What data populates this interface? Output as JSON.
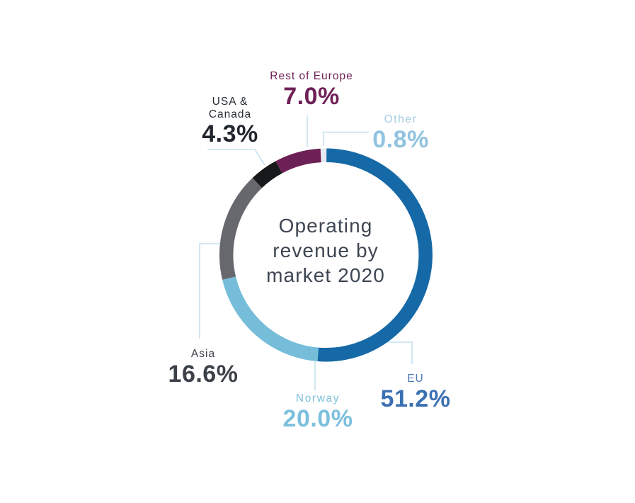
{
  "chart_data": {
    "type": "pie",
    "subtype": "donut",
    "title": "Operating revenue by market 2020",
    "legend_position": "callout-labels",
    "start_angle_deg": -2.6,
    "direction": "clockwise",
    "segments": [
      {
        "id": "other",
        "label": "Other",
        "value": 0.8,
        "display": "0.8%",
        "color": "#e6e9f1",
        "label_color": "#a4cde4",
        "value_color": "#90c3e0"
      },
      {
        "id": "eu",
        "label": "EU",
        "value": 51.2,
        "display": "51.2%",
        "color": "#1569a6",
        "label_color": "#4d79b5",
        "value_color": "#3b70b2"
      },
      {
        "id": "norway",
        "label": "Norway",
        "value": 20.0,
        "display": "20.0%",
        "color": "#76bdd9",
        "label_color": "#7fc1de",
        "value_color": "#7cc0de"
      },
      {
        "id": "asia",
        "label": "Asia",
        "value": 16.6,
        "display": "16.6%",
        "color": "#66686e",
        "label_color": "#3c4049",
        "value_color": "#3c4049"
      },
      {
        "id": "usa-canada",
        "label": "USA & Canada",
        "value": 4.3,
        "display": "4.3%",
        "color": "#18191b",
        "label_color": "#272c34",
        "value_color": "#22262e"
      },
      {
        "id": "rest-of-europe",
        "label": "Rest of Europe",
        "value": 7.0,
        "display": "7.0%",
        "color": "#6d2056",
        "label_color": "#6f2157",
        "value_color": "#6f2157"
      }
    ]
  },
  "center": {
    "lines": [
      "Operating",
      "revenue by",
      "market 2020"
    ]
  },
  "ui": {
    "background_color": "#ffffff",
    "center_text_color": "#3e4653",
    "leader_line_color": "#b9d9ea"
  }
}
